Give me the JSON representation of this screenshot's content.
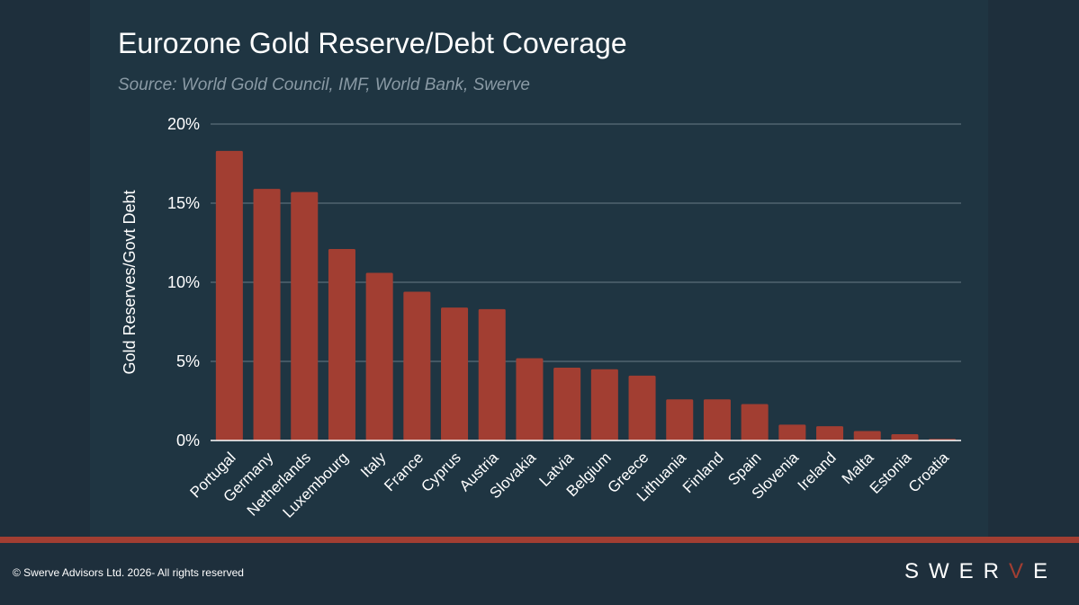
{
  "title": "Eurozone Gold Reserve/Debt Coverage",
  "subtitle": "Source: World Gold Council, IMF, World Bank, Swerve",
  "footer": {
    "copyright": "© Swerve Advisors Ltd. 2026- All rights reserved",
    "logo_left": "SWER",
    "logo_accent": "V",
    "logo_right": "E"
  },
  "colors": {
    "bar": "#a23e32",
    "grid": "#5b6e7a",
    "axis_text": "#ffffff",
    "brand_red": "#a23e32"
  },
  "chart_data": {
    "type": "bar",
    "title": "Eurozone Gold Reserve/Debt Coverage",
    "subtitle": "Source: World Gold Council, IMF, World Bank, Swerve",
    "xlabel": "",
    "ylabel": "Gold Reserves/Govt Debt",
    "ylim": [
      0,
      20
    ],
    "yticks": [
      "0%",
      "5%",
      "10%",
      "15%",
      "20%"
    ],
    "grid": true,
    "categories": [
      "Portugal",
      "Germany",
      "Netherlands",
      "Luxembourg",
      "Italy",
      "France",
      "Cyprus",
      "Austria",
      "Slovakia",
      "Latvia",
      "Belgium",
      "Greece",
      "Lithuania",
      "Finland",
      "Spain",
      "Slovenia",
      "Ireland",
      "Malta",
      "Estonia",
      "Croatia"
    ],
    "values": [
      18.3,
      15.9,
      15.7,
      12.1,
      10.6,
      9.4,
      8.4,
      8.3,
      5.2,
      4.6,
      4.5,
      4.1,
      2.6,
      2.6,
      2.3,
      1.0,
      0.9,
      0.6,
      0.4,
      0.1
    ]
  }
}
